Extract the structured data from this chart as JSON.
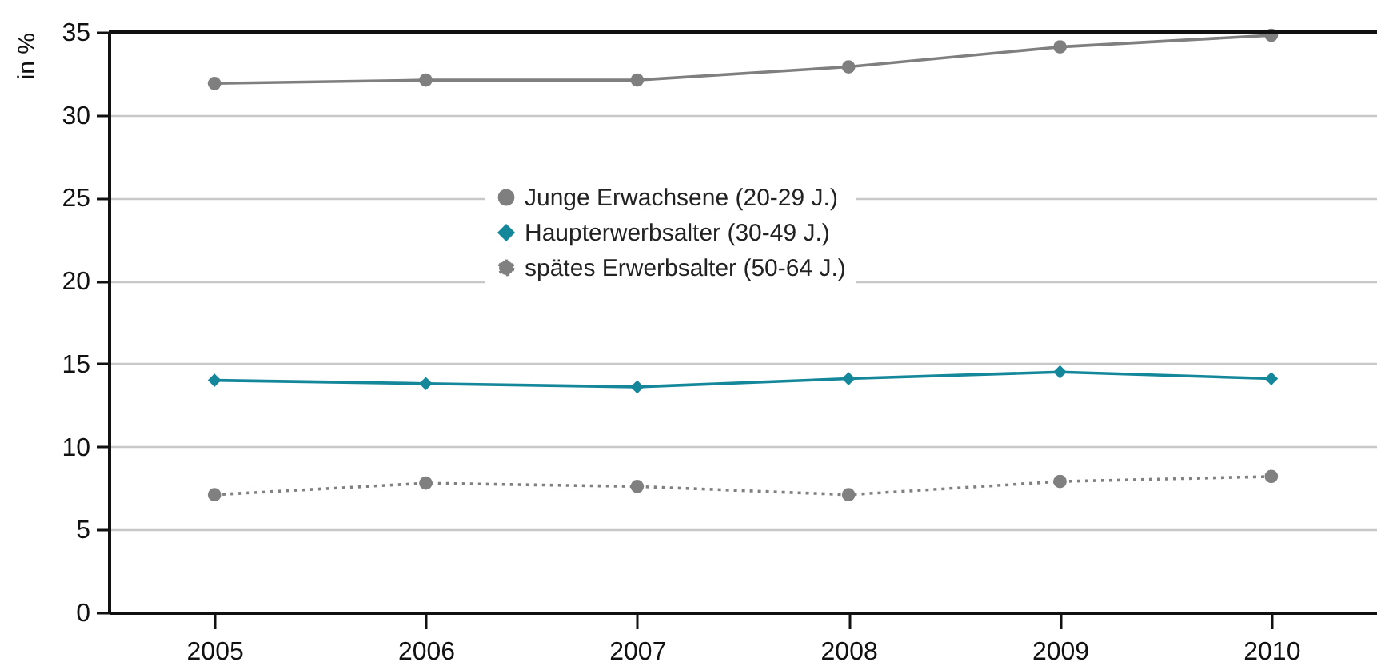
{
  "chart_data": {
    "type": "line",
    "ylabel": "in %",
    "categories": [
      "2005",
      "2006",
      "2007",
      "2008",
      "2009",
      "2010"
    ],
    "series": [
      {
        "name": "Junge Erwachsene (20-29 J.)",
        "color": "#7f7f7f",
        "marker": "circle",
        "line_style": "solid",
        "values": [
          31.9,
          32.1,
          32.1,
          32.9,
          34.1,
          34.8
        ]
      },
      {
        "name": "Haupterwerbsalter (30-49 J.)",
        "color": "#14889a",
        "marker": "diamond",
        "line_style": "solid",
        "values": [
          14.0,
          13.8,
          13.6,
          14.1,
          14.5,
          14.1
        ]
      },
      {
        "name": "spätes Erwerbsalter (50-64 J.)",
        "color": "#808080",
        "marker": "circle",
        "line_style": "dotted",
        "values": [
          7.1,
          7.8,
          7.6,
          7.1,
          7.9,
          8.2
        ]
      }
    ],
    "ylim": [
      0,
      35
    ],
    "yticks": [
      0,
      5,
      10,
      15,
      20,
      25,
      30,
      35
    ],
    "grid": "y",
    "legend": "top"
  }
}
